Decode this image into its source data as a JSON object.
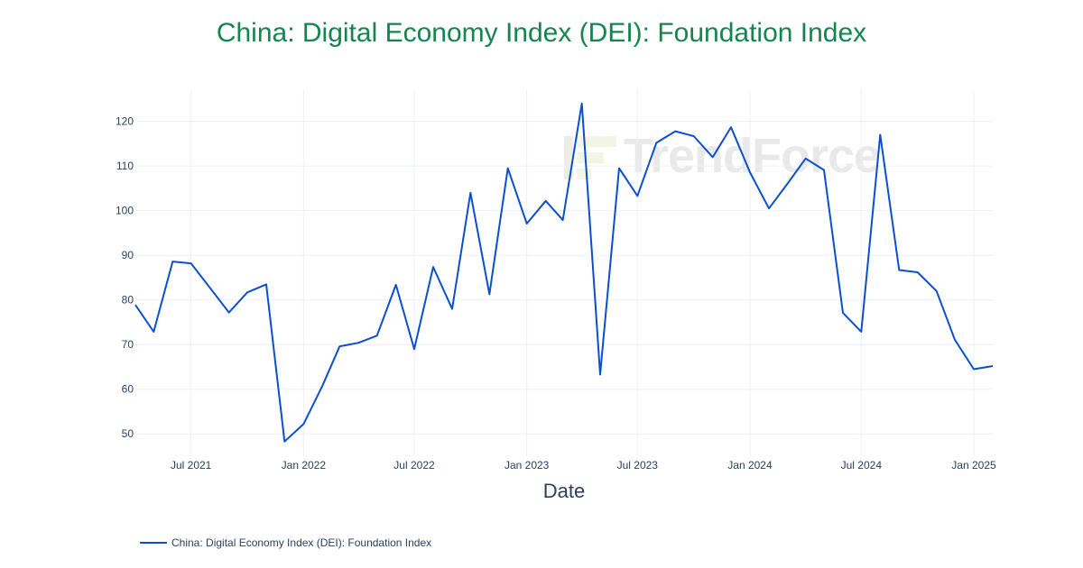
{
  "watermark": "TrendForce",
  "chart_data": {
    "type": "line",
    "title": "China: Digital Economy Index (DEI): Foundation Index",
    "xlabel": "Date",
    "ylabel": "",
    "x_range": [
      "2021-04-01",
      "2025-02-01"
    ],
    "ylim": [
      45,
      127
    ],
    "y_ticks": [
      50,
      60,
      70,
      80,
      90,
      100,
      110,
      120
    ],
    "x_ticks": [
      {
        "date": "2021-07-01",
        "label": "Jul 2021"
      },
      {
        "date": "2022-01-01",
        "label": "Jan 2022"
      },
      {
        "date": "2022-07-01",
        "label": "Jul 2022"
      },
      {
        "date": "2023-01-01",
        "label": "Jan 2023"
      },
      {
        "date": "2023-07-01",
        "label": "Jul 2023"
      },
      {
        "date": "2024-01-01",
        "label": "Jan 2024"
      },
      {
        "date": "2024-07-01",
        "label": "Jul 2024"
      },
      {
        "date": "2025-01-01",
        "label": "Jan 2025"
      }
    ],
    "grid": true,
    "legend_position": "bottom-left",
    "colors": {
      "line": "#0b4fce",
      "title": "#15854f",
      "grid": "#ebf0f8",
      "text": "#2a3f5f"
    },
    "series": [
      {
        "name": "China: Digital Economy Index (DEI): Foundation Index",
        "x": [
          "2021-04-01",
          "2021-05-01",
          "2021-06-01",
          "2021-07-01",
          "2021-08-01",
          "2021-09-01",
          "2021-10-01",
          "2021-11-01",
          "2021-12-01",
          "2022-01-01",
          "2022-02-01",
          "2022-03-01",
          "2022-04-01",
          "2022-05-01",
          "2022-06-01",
          "2022-07-01",
          "2022-08-01",
          "2022-09-01",
          "2022-10-01",
          "2022-11-01",
          "2022-12-01",
          "2023-01-01",
          "2023-02-01",
          "2023-03-01",
          "2023-04-01",
          "2023-05-01",
          "2023-06-01",
          "2023-07-01",
          "2023-08-01",
          "2023-09-01",
          "2023-10-01",
          "2023-11-01",
          "2023-12-01",
          "2024-01-01",
          "2024-02-01",
          "2024-03-01",
          "2024-04-01",
          "2024-05-01",
          "2024-06-01",
          "2024-07-01",
          "2024-08-01",
          "2024-09-01",
          "2024-10-01",
          "2024-11-01",
          "2024-12-01",
          "2025-01-01",
          "2025-02-01"
        ],
        "values": [
          78.9,
          72.9,
          88.6,
          88.2,
          82.7,
          77.2,
          81.7,
          83.5,
          48.3,
          52.2,
          60.8,
          69.6,
          70.4,
          72.0,
          83.4,
          69.0,
          87.4,
          78.0,
          104.0,
          81.3,
          109.5,
          97.1,
          102.2,
          97.9,
          124.0,
          63.3,
          109.5,
          103.3,
          115.2,
          117.8,
          116.7,
          112.0,
          118.7,
          108.6,
          100.5,
          105.8,
          111.7,
          109.1,
          77.1,
          72.9,
          117.0,
          86.7,
          86.2,
          82.0,
          71.1,
          64.5,
          65.2
        ]
      }
    ]
  }
}
